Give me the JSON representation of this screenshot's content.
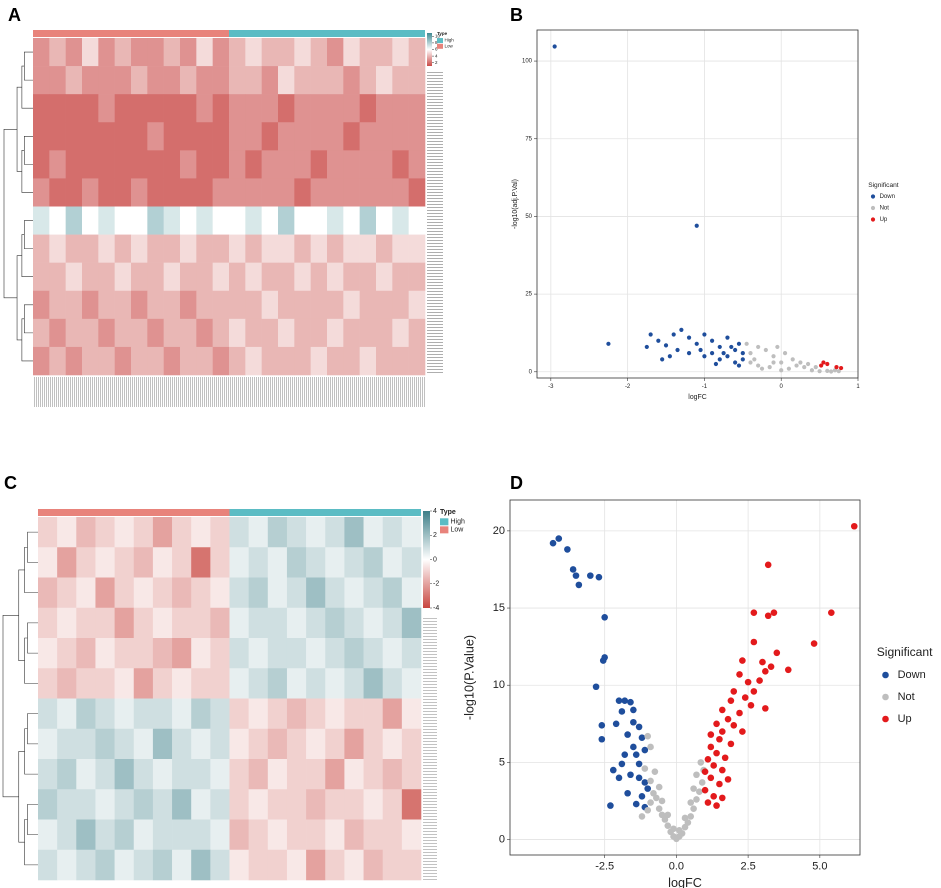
{
  "chart_data": [
    {
      "type": "heatmap",
      "panel": "A",
      "legend_title": "Type",
      "column_groups": [
        {
          "name": "High",
          "color": "#5BBCC4",
          "columns": 12
        },
        {
          "name": "Low",
          "color": "#E8837B",
          "columns": 12
        }
      ],
      "column_order": [
        1,
        0
      ],
      "colors": [
        "#C94A47",
        "#FFFFFF",
        "#3E8A93"
      ],
      "zlim": [
        1,
        11
      ],
      "zticks": [
        10,
        8,
        6,
        4,
        2
      ],
      "matrix": [
        [
          3,
          4,
          3,
          5,
          3,
          4,
          3,
          3,
          4,
          3,
          5,
          3,
          4,
          5,
          4,
          4,
          5,
          4,
          3,
          5,
          4,
          4,
          5,
          4
        ],
        [
          3,
          3,
          4,
          3,
          3,
          3,
          4,
          3,
          3,
          4,
          3,
          3,
          4,
          4,
          3,
          5,
          4,
          4,
          4,
          3,
          4,
          5,
          4,
          4
        ],
        [
          2,
          2,
          2,
          2,
          3,
          2,
          2,
          2,
          2,
          2,
          3,
          2,
          3,
          3,
          3,
          2,
          3,
          3,
          3,
          3,
          2,
          3,
          3,
          3
        ],
        [
          2,
          2,
          2,
          2,
          2,
          2,
          2,
          3,
          2,
          2,
          2,
          2,
          3,
          3,
          2,
          3,
          3,
          3,
          3,
          2,
          3,
          3,
          3,
          3
        ],
        [
          2,
          3,
          2,
          2,
          2,
          2,
          2,
          2,
          2,
          3,
          2,
          2,
          3,
          2,
          3,
          3,
          3,
          2,
          3,
          3,
          3,
          3,
          2,
          3
        ],
        [
          3,
          2,
          2,
          3,
          2,
          2,
          3,
          2,
          2,
          2,
          2,
          3,
          3,
          3,
          3,
          3,
          2,
          3,
          3,
          3,
          3,
          3,
          3,
          2
        ],
        [
          7,
          6,
          8,
          6,
          7,
          6,
          6,
          8,
          7,
          6,
          7,
          6,
          6,
          7,
          6,
          8,
          6,
          6,
          7,
          6,
          8,
          6,
          7,
          6
        ],
        [
          4,
          5,
          4,
          4,
          5,
          4,
          5,
          4,
          4,
          5,
          4,
          4,
          5,
          4,
          5,
          5,
          4,
          5,
          4,
          5,
          5,
          4,
          5,
          5
        ],
        [
          4,
          4,
          5,
          4,
          4,
          5,
          4,
          4,
          5,
          4,
          4,
          5,
          4,
          5,
          4,
          4,
          5,
          4,
          5,
          4,
          4,
          5,
          4,
          4
        ],
        [
          3,
          4,
          4,
          3,
          4,
          4,
          3,
          4,
          4,
          3,
          4,
          4,
          4,
          4,
          5,
          4,
          4,
          4,
          4,
          5,
          4,
          4,
          4,
          5
        ],
        [
          4,
          3,
          4,
          4,
          3,
          4,
          4,
          3,
          4,
          4,
          3,
          4,
          5,
          4,
          4,
          5,
          4,
          4,
          5,
          4,
          4,
          4,
          5,
          4
        ],
        [
          3,
          4,
          3,
          4,
          4,
          3,
          4,
          4,
          3,
          4,
          4,
          3,
          4,
          5,
          4,
          4,
          4,
          5,
          4,
          4,
          5,
          4,
          4,
          4
        ]
      ]
    },
    {
      "type": "scatter",
      "panel": "B",
      "xlabel": "logFC",
      "ylabel": "-log10(adj.P.Val)",
      "legend_title": "Significant",
      "xlim": [
        -3.18,
        1.0
      ],
      "ylim": [
        -2,
        110
      ],
      "xticks": [
        -3,
        -2,
        -1,
        0,
        1
      ],
      "yticks": [
        0,
        25,
        50,
        75,
        100
      ],
      "grid": true,
      "series": [
        {
          "name": "Down",
          "color": "#1F4E9C",
          "x": [
            -2.95,
            -1.1,
            -2.25,
            -1.75,
            -1.7,
            -1.6,
            -1.5,
            -1.4,
            -1.3,
            -1.2,
            -1.1,
            -1.0,
            -0.9,
            -0.8,
            -0.7,
            -0.6,
            -0.55,
            -0.5,
            -0.5,
            -0.55,
            -0.6,
            -0.7,
            -0.8,
            -0.9,
            -1.0,
            -1.2,
            -1.35,
            -1.45,
            -1.55,
            -0.65,
            -0.75,
            -1.05,
            -0.85
          ],
          "y": [
            104.7,
            47,
            9,
            8,
            12,
            10,
            8.5,
            12,
            13.5,
            11,
            9,
            12,
            10,
            8,
            11,
            7,
            9,
            6,
            4,
            2,
            3,
            5,
            4,
            6,
            5,
            6,
            7,
            5,
            4,
            8,
            6,
            7,
            2.5
          ]
        },
        {
          "name": "Not",
          "color": "#BEBEBE",
          "x": [
            -0.45,
            -0.4,
            -0.35,
            -0.3,
            -0.2,
            -0.1,
            0,
            0.1,
            0.2,
            0.3,
            0.4,
            0.5,
            0.6,
            0.7,
            -0.3,
            -0.1,
            0.05,
            0.15,
            -0.25,
            0.25,
            0.35,
            -0.4,
            -0.15,
            0,
            0.45,
            0.65,
            0.75,
            -0.05
          ],
          "y": [
            9,
            6,
            4,
            2,
            7,
            5,
            3,
            1,
            2,
            1.5,
            0.5,
            0.2,
            0.3,
            0.5,
            8,
            3,
            6,
            4,
            1,
            3,
            2.5,
            3,
            1.5,
            0.5,
            1.5,
            0.1,
            0.2,
            8
          ]
        },
        {
          "name": "Up",
          "color": "#E31A1C",
          "x": [
            0.52,
            0.55,
            0.6,
            0.72,
            0.78
          ],
          "y": [
            2,
            3,
            2.5,
            1.5,
            1.2
          ]
        }
      ]
    },
    {
      "type": "heatmap",
      "panel": "C",
      "legend_title": "Type",
      "column_groups": [
        {
          "name": "High",
          "color": "#5BBCC4",
          "columns": 10
        },
        {
          "name": "Low",
          "color": "#E8837B",
          "columns": 10
        }
      ],
      "column_order": [
        1,
        0
      ],
      "colors": [
        "#C8453F",
        "#FFFFFF",
        "#3D7F88"
      ],
      "zlim": [
        -4,
        4
      ],
      "zticks": [
        4,
        2,
        0,
        -2,
        -4
      ],
      "matrix": [
        [
          -1,
          -0.5,
          -1.5,
          -1,
          -0.5,
          -1,
          -2,
          -1,
          -0.5,
          -1,
          1,
          0.5,
          1.5,
          1,
          0.5,
          1,
          2,
          0.5,
          1,
          0.5
        ],
        [
          -0.5,
          -2,
          -1,
          -0.5,
          -1,
          -1.5,
          -0.5,
          -1,
          -3,
          -1,
          0.5,
          1,
          0.5,
          1.5,
          1,
          0.5,
          1,
          1.5,
          0.5,
          1
        ],
        [
          -1.5,
          -1,
          -0.5,
          -2,
          -1,
          -0.5,
          -1,
          -1.5,
          -1,
          -0.5,
          1,
          1.5,
          0.5,
          1,
          2,
          1,
          0.5,
          1,
          1.5,
          0.5
        ],
        [
          -1,
          -0.5,
          -1,
          -1,
          -2,
          -1,
          -0.5,
          -1,
          -1,
          -1.5,
          0.5,
          1,
          1,
          0.5,
          1,
          1.5,
          1,
          0.5,
          1,
          2
        ],
        [
          -0.5,
          -1,
          -1.5,
          -0.5,
          -1,
          -1,
          -1.5,
          -2,
          -0.5,
          -1,
          1,
          0.5,
          1,
          1,
          0.5,
          1,
          1.5,
          1,
          0.5,
          1
        ],
        [
          -1,
          -1.5,
          -1,
          -1,
          -0.5,
          -2,
          -1,
          -0.5,
          -1,
          -1,
          0.5,
          1,
          1.5,
          0.5,
          1,
          0.5,
          1,
          2,
          1,
          0.5
        ],
        [
          1,
          0.5,
          1.5,
          1,
          0.5,
          1,
          1,
          0.5,
          1.5,
          1,
          -1,
          -0.5,
          -1,
          -1.5,
          -1,
          -0.5,
          -1,
          -1,
          -2,
          -0.5
        ],
        [
          0.5,
          1,
          1,
          1.5,
          1,
          0.5,
          2,
          1,
          0.5,
          1,
          -0.5,
          -1,
          -1.5,
          -1,
          -0.5,
          -1,
          -2,
          -1,
          -0.5,
          -1
        ],
        [
          1,
          1.5,
          0.5,
          1,
          2,
          1,
          0.5,
          1,
          1,
          0.5,
          -1,
          -1.5,
          -0.5,
          -1,
          -1,
          -2,
          -0.5,
          -1,
          -1.5,
          -1
        ],
        [
          1.5,
          1,
          1,
          0.5,
          1,
          1.5,
          1,
          2,
          0.5,
          1,
          -1,
          -0.5,
          -1,
          -1,
          -1.5,
          -1,
          -1,
          -0.5,
          -1,
          -3
        ],
        [
          0.5,
          1,
          2,
          1,
          1.5,
          0.5,
          1,
          1,
          1,
          0.5,
          -1.5,
          -1,
          -0.5,
          -1,
          -1,
          -0.5,
          -1.5,
          -1,
          -1,
          -0.5
        ],
        [
          1,
          0.5,
          1,
          1.5,
          0.5,
          1,
          1.5,
          0.5,
          2,
          1,
          -0.5,
          -1,
          -1,
          -0.5,
          -2,
          -1,
          -0.5,
          -1.5,
          -1,
          -1
        ]
      ]
    },
    {
      "type": "scatter",
      "panel": "D",
      "xlabel": "logFC",
      "ylabel": "-log10(P.Value)",
      "legend_title": "Significant",
      "xlim": [
        -5.8,
        6.4
      ],
      "ylim": [
        -1,
        22
      ],
      "xticks": [
        -2.5,
        {
          "value": 0,
          "label": "0.0"
        },
        2.5,
        {
          "value": 5,
          "label": "5.0"
        }
      ],
      "yticks": [
        0,
        5,
        10,
        15,
        20
      ],
      "grid": true,
      "series": [
        {
          "name": "Down",
          "color": "#1F4E9C",
          "x": [
            -4.3,
            -4.1,
            -3.8,
            -3.6,
            -3.5,
            -3.4,
            -3.0,
            -2.7,
            -2.5,
            -2.5,
            -2.55,
            -2.8,
            -2.6,
            -2.6,
            -2.0,
            -1.8,
            -1.6,
            -1.5,
            -1.9,
            -2.1,
            -1.5,
            -1.3,
            -1.7,
            -1.2,
            -1.5,
            -1.4,
            -1.1,
            -1.3,
            -1.8,
            -1.9,
            -2.2,
            -2.0,
            -1.6,
            -1.3,
            -1.1,
            -1.7,
            -1.2,
            -1.4,
            -2.3,
            -1.1,
            -1.0
          ],
          "y": [
            19.2,
            19.5,
            18.8,
            17.5,
            17.1,
            16.5,
            17.1,
            17.0,
            14.4,
            11.8,
            11.6,
            9.9,
            7.4,
            6.5,
            9.0,
            9.0,
            8.9,
            8.4,
            8.3,
            7.5,
            7.6,
            7.3,
            6.8,
            6.6,
            6.0,
            5.5,
            5.8,
            4.9,
            5.5,
            4.9,
            4.5,
            4.0,
            4.2,
            4.0,
            3.7,
            3.0,
            2.8,
            2.3,
            2.2,
            2.1,
            3.3
          ]
        },
        {
          "name": "Not",
          "color": "#BEBEBE",
          "x": [
            -1.0,
            -0.9,
            -1.1,
            -0.9,
            -0.8,
            -0.9,
            -1.0,
            -0.7,
            -0.6,
            -0.5,
            -0.4,
            -0.3,
            -0.2,
            -0.1,
            0,
            0.1,
            0.2,
            0.3,
            0.4,
            0.5,
            0.6,
            0.7,
            0.8,
            0.9,
            0.95,
            0.7,
            0.6,
            0.85,
            -0.6,
            -0.75,
            -0.5,
            -0.3,
            0.3,
            0.5,
            -1.2,
            0.1,
            -0.1
          ],
          "y": [
            6.7,
            6.0,
            4.6,
            3.8,
            3.0,
            2.4,
            1.9,
            2.7,
            2.0,
            1.6,
            1.3,
            0.9,
            0.5,
            0.2,
            0.05,
            0.2,
            0.4,
            0.8,
            1.1,
            1.5,
            2.0,
            2.6,
            3.1,
            3.7,
            4.5,
            4.2,
            3.3,
            5.0,
            3.4,
            4.4,
            2.5,
            1.6,
            1.4,
            2.4,
            1.5,
            0.6,
            0.7
          ]
        },
        {
          "name": "Up",
          "color": "#E31A1C",
          "x": [
            6.2,
            3.2,
            2.7,
            3.2,
            3.4,
            5.4,
            2.7,
            4.8,
            3.5,
            3.0,
            2.3,
            3.3,
            3.1,
            3.9,
            2.2,
            2.5,
            2.9,
            2.7,
            2.0,
            2.4,
            1.9,
            2.6,
            3.1,
            1.6,
            2.2,
            1.8,
            2.0,
            1.4,
            1.6,
            2.3,
            1.2,
            1.5,
            1.9,
            1.2,
            1.4,
            1.7,
            1.1,
            1.3,
            1.6,
            1.0,
            1.2,
            1.5,
            1.0,
            1.3,
            1.1,
            1.4,
            1.6,
            1.8
          ],
          "y": [
            20.3,
            17.8,
            14.7,
            14.5,
            14.7,
            14.7,
            12.8,
            12.7,
            12.1,
            11.5,
            11.6,
            11.2,
            10.9,
            11.0,
            10.7,
            10.2,
            10.3,
            9.6,
            9.6,
            9.2,
            9.0,
            8.7,
            8.5,
            8.4,
            8.2,
            7.8,
            7.4,
            7.5,
            7.0,
            7.0,
            6.8,
            6.5,
            6.2,
            6.0,
            5.6,
            5.3,
            5.2,
            4.8,
            4.5,
            4.4,
            4.0,
            3.6,
            3.2,
            2.8,
            2.4,
            2.2,
            2.7,
            3.9
          ]
        }
      ]
    }
  ]
}
